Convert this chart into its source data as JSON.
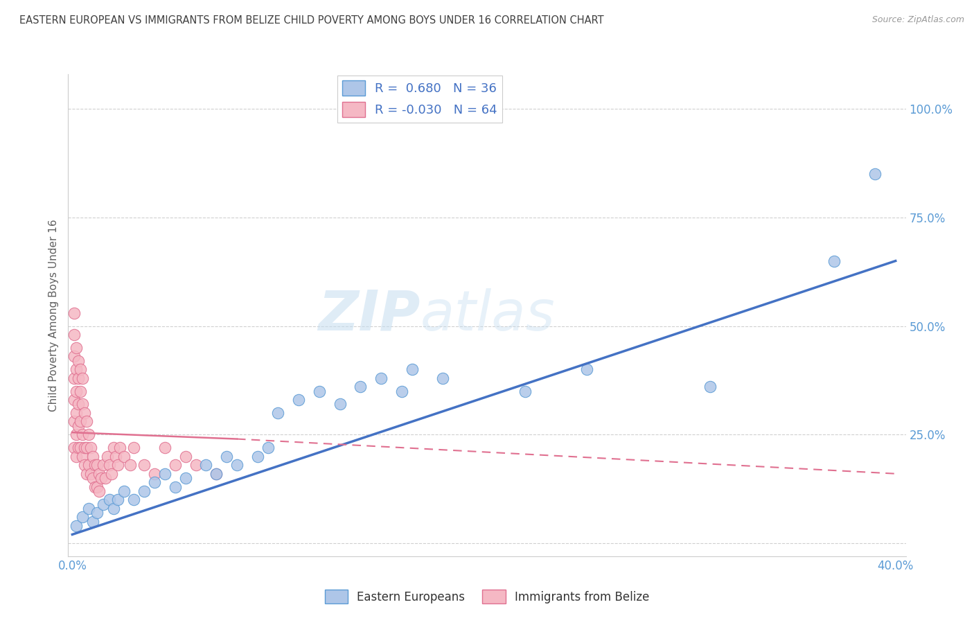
{
  "title": "EASTERN EUROPEAN VS IMMIGRANTS FROM BELIZE CHILD POVERTY AMONG BOYS UNDER 16 CORRELATION CHART",
  "source": "Source: ZipAtlas.com",
  "ylabel": "Child Poverty Among Boys Under 16",
  "y_ticks": [
    0.0,
    0.25,
    0.5,
    0.75,
    1.0
  ],
  "y_tick_labels": [
    "",
    "25.0%",
    "50.0%",
    "75.0%",
    "100.0%"
  ],
  "xlim": [
    -0.002,
    0.405
  ],
  "ylim": [
    -0.03,
    1.08
  ],
  "series1_color": "#aec6e8",
  "series1_edge": "#5b9bd5",
  "series1_label": "Eastern Europeans",
  "series1_R": 0.68,
  "series1_N": 36,
  "series2_color": "#f5b8c4",
  "series2_edge": "#e07090",
  "series2_label": "Immigrants from Belize",
  "series2_R": -0.03,
  "series2_N": 64,
  "watermark_line1": "ZIP",
  "watermark_line2": "atlas",
  "background_color": "#ffffff",
  "grid_color": "#d0d0d0",
  "title_color": "#404040",
  "axis_label_color": "#606060",
  "trend1_color": "#4472c4",
  "trend2_color": "#e07090",
  "series1_x": [
    0.002,
    0.005,
    0.008,
    0.01,
    0.012,
    0.015,
    0.018,
    0.02,
    0.022,
    0.025,
    0.03,
    0.035,
    0.04,
    0.045,
    0.05,
    0.055,
    0.065,
    0.07,
    0.075,
    0.08,
    0.09,
    0.095,
    0.1,
    0.11,
    0.12,
    0.13,
    0.14,
    0.15,
    0.16,
    0.165,
    0.18,
    0.22,
    0.25,
    0.31,
    0.37,
    0.39
  ],
  "series1_y": [
    0.04,
    0.06,
    0.08,
    0.05,
    0.07,
    0.09,
    0.1,
    0.08,
    0.1,
    0.12,
    0.1,
    0.12,
    0.14,
    0.16,
    0.13,
    0.15,
    0.18,
    0.16,
    0.2,
    0.18,
    0.2,
    0.22,
    0.3,
    0.33,
    0.35,
    0.32,
    0.36,
    0.38,
    0.35,
    0.4,
    0.38,
    0.35,
    0.4,
    0.36,
    0.65,
    0.85
  ],
  "series2_x": [
    0.001,
    0.001,
    0.001,
    0.001,
    0.001,
    0.001,
    0.001,
    0.002,
    0.002,
    0.002,
    0.002,
    0.002,
    0.002,
    0.003,
    0.003,
    0.003,
    0.003,
    0.003,
    0.004,
    0.004,
    0.004,
    0.004,
    0.005,
    0.005,
    0.005,
    0.005,
    0.006,
    0.006,
    0.006,
    0.007,
    0.007,
    0.007,
    0.008,
    0.008,
    0.009,
    0.009,
    0.01,
    0.01,
    0.011,
    0.011,
    0.012,
    0.012,
    0.013,
    0.013,
    0.014,
    0.015,
    0.016,
    0.017,
    0.018,
    0.019,
    0.02,
    0.021,
    0.022,
    0.023,
    0.025,
    0.028,
    0.03,
    0.035,
    0.04,
    0.045,
    0.05,
    0.055,
    0.06,
    0.07
  ],
  "series2_y": [
    0.53,
    0.48,
    0.43,
    0.38,
    0.33,
    0.28,
    0.22,
    0.45,
    0.4,
    0.35,
    0.3,
    0.25,
    0.2,
    0.42,
    0.38,
    0.32,
    0.27,
    0.22,
    0.4,
    0.35,
    0.28,
    0.22,
    0.38,
    0.32,
    0.25,
    0.2,
    0.3,
    0.22,
    0.18,
    0.28,
    0.22,
    0.16,
    0.25,
    0.18,
    0.22,
    0.16,
    0.2,
    0.15,
    0.18,
    0.13,
    0.18,
    0.13,
    0.16,
    0.12,
    0.15,
    0.18,
    0.15,
    0.2,
    0.18,
    0.16,
    0.22,
    0.2,
    0.18,
    0.22,
    0.2,
    0.18,
    0.22,
    0.18,
    0.16,
    0.22,
    0.18,
    0.2,
    0.18,
    0.16
  ],
  "trend1_x0": 0.0,
  "trend1_y0": 0.02,
  "trend1_x1": 0.4,
  "trend1_y1": 0.65,
  "trend2_x0": 0.0,
  "trend2_y0": 0.255,
  "trend2_x1": 0.08,
  "trend2_y1": 0.24,
  "trend2_x1_dash": 0.4,
  "trend2_y1_dash": 0.16
}
